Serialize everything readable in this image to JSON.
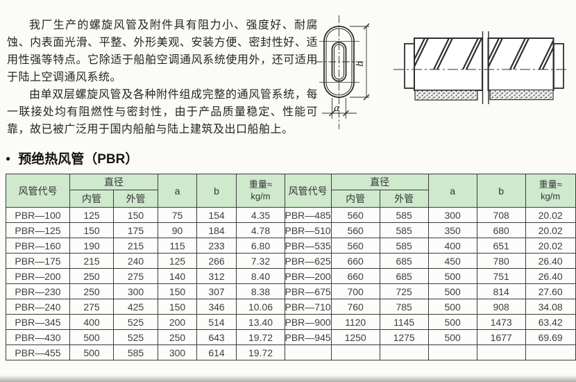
{
  "intro": {
    "p1": "我厂生产的螺旋风管及附件具有阻力小、强度好、耐腐蚀、内表面光滑、平整、外形美观、安装方便、密封性好、适用性强等特点。它除适于船舶空调通风系统使用外，还可适用于陆上空调通风系统。",
    "p2": "由单双层螺旋风管及各种附件组成完整的通风管系统，每一联接处均有阻燃性与密封性，由于产品质量稳定、性能可靠，故已被广泛用于国内船舶与陆上建筑及出口船舶上。"
  },
  "section": {
    "bullet": "●",
    "title": "预绝热风管（PBR）"
  },
  "diagrams": {
    "cross_section": {
      "dim_a": "a",
      "dim_b": "b"
    }
  },
  "table": {
    "headers": {
      "code": "风管代号",
      "diameter": "直径",
      "inner": "内管",
      "outer": "外管",
      "a": "a",
      "b": "b",
      "weight_line1": "重量≈",
      "weight_line2": "kg/m"
    },
    "left_rows": [
      [
        "PBR—100",
        "125",
        "150",
        "75",
        "154",
        "4.35"
      ],
      [
        "PBR—125",
        "150",
        "175",
        "90",
        "184",
        "4.78"
      ],
      [
        "PBR—160",
        "190",
        "215",
        "115",
        "233",
        "6.80"
      ],
      [
        "PBR—175",
        "215",
        "240",
        "125",
        "266",
        "7.32"
      ],
      [
        "PBR—200",
        "250",
        "275",
        "140",
        "312",
        "8.40"
      ],
      [
        "PBR—230",
        "250",
        "300",
        "150",
        "307",
        "8.38"
      ],
      [
        "PBR—240",
        "275",
        "425",
        "150",
        "346",
        "10.06"
      ],
      [
        "PBR—345",
        "400",
        "525",
        "200",
        "514",
        "13.40"
      ],
      [
        "PBR—430",
        "500",
        "525",
        "250",
        "643",
        "19.72"
      ],
      [
        "PBR—455",
        "500",
        "585",
        "300",
        "614",
        "19.72"
      ]
    ],
    "right_rows": [
      [
        "PBR—485",
        "560",
        "585",
        "300",
        "708",
        "20.02"
      ],
      [
        "PBR—510",
        "560",
        "585",
        "350",
        "680",
        "20.02"
      ],
      [
        "PBR—535",
        "560",
        "585",
        "400",
        "651",
        "20.02"
      ],
      [
        "PBR—625",
        "660",
        "685",
        "450",
        "780",
        "26.40"
      ],
      [
        "PBR—200",
        "660",
        "685",
        "500",
        "751",
        "26.40"
      ],
      [
        "PBR—675",
        "700",
        "725",
        "500",
        "814",
        "27.60"
      ],
      [
        "PBR—710",
        "760",
        "785",
        "500",
        "908",
        "34.08"
      ],
      [
        "PBR—900",
        "1120",
        "1145",
        "500",
        "1473",
        "63.42"
      ],
      [
        "PBR—945",
        "1250",
        "1275",
        "500",
        "1677",
        "69.69"
      ],
      [
        "",
        "",
        "",
        "",
        "",
        ""
      ]
    ]
  },
  "colors": {
    "table_header_bg": "#cfe9cd",
    "table_row_bg": "#fcfdfa",
    "table_border": "#3a3a3a",
    "page_bg": "#fbfbf7",
    "ink": "#2b2b2b"
  }
}
